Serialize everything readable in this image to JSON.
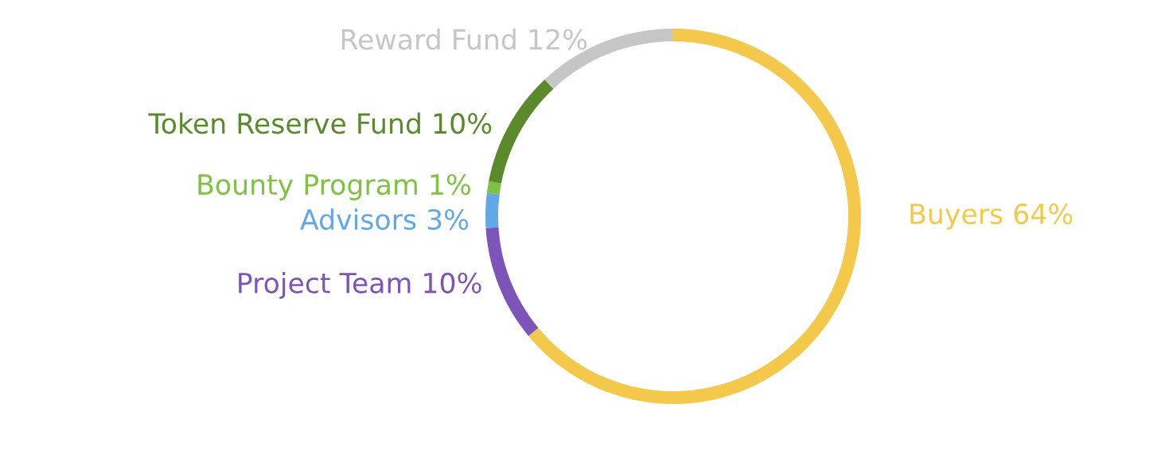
{
  "chart_data": {
    "type": "donut",
    "categories": [
      "Buyers 64%",
      "Project Team 10%",
      "Advisors 3%",
      "Bounty Program 1%",
      "Token Reserve Fund 10%",
      "Reward Fund 12%"
    ],
    "values": [
      64,
      10,
      3,
      1,
      10,
      12
    ],
    "colors": [
      "#f4c84a",
      "#7d55b8",
      "#62a8e6",
      "#7dc242",
      "#5a8a2c",
      "#c6c6c6"
    ]
  }
}
